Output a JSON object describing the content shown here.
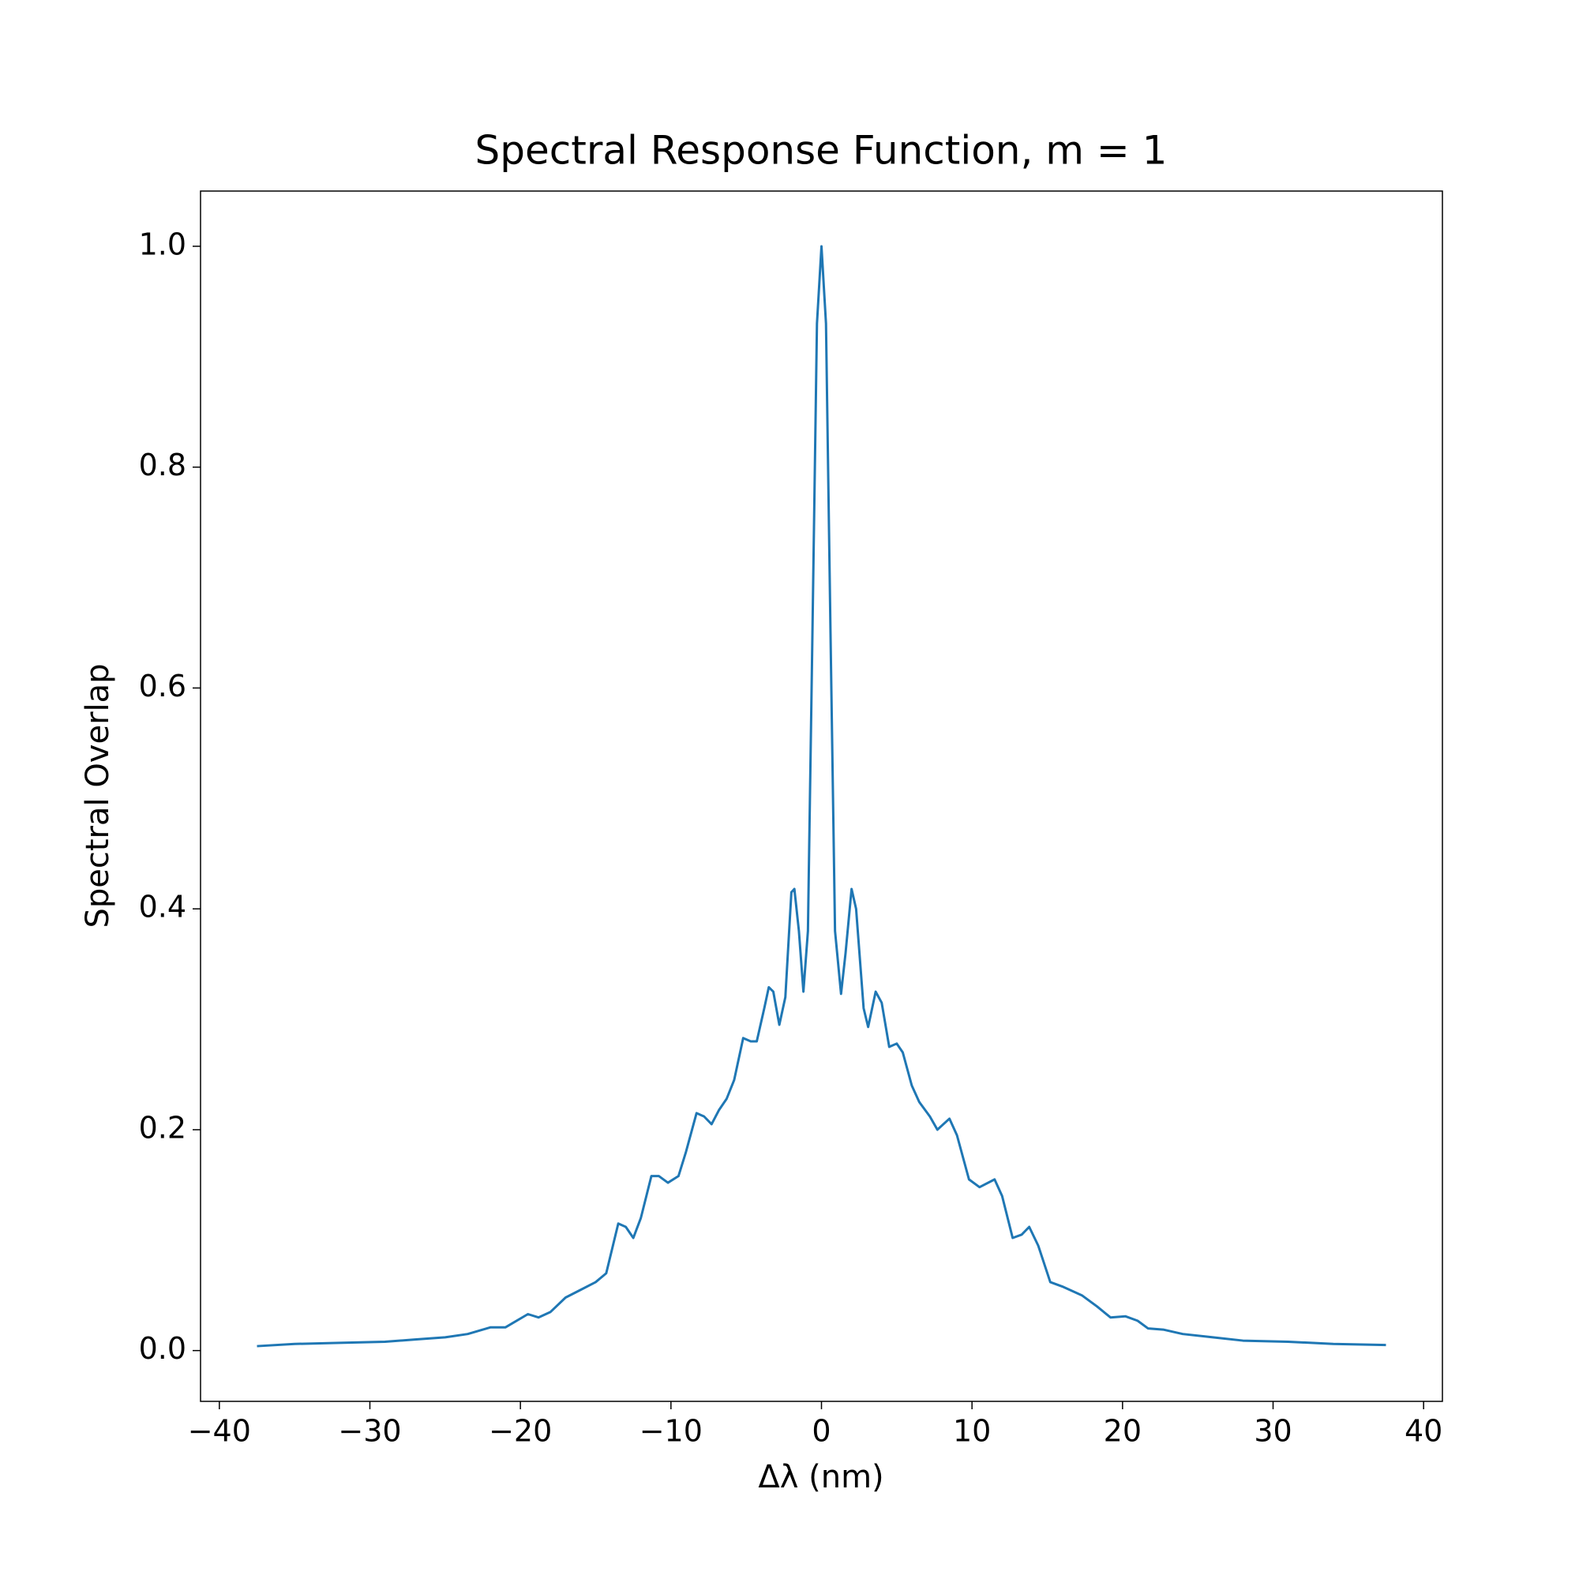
{
  "chart_data": {
    "type": "line",
    "title": "Spectral Response Function, m = 1",
    "xlabel": "Δλ (nm)",
    "ylabel": "Spectral Overlap",
    "xlim": [
      -41.25,
      41.25
    ],
    "ylim": [
      -0.046,
      1.05
    ],
    "xticks": [
      {
        "value": -40,
        "label": "−40"
      },
      {
        "value": -30,
        "label": "−30"
      },
      {
        "value": -20,
        "label": "−20"
      },
      {
        "value": -10,
        "label": "−10"
      },
      0,
      10,
      20,
      30,
      40
    ],
    "yticks": [
      {
        "value": 0,
        "label": "0.0"
      },
      0.2,
      0.4,
      0.6,
      0.8,
      {
        "value": 1,
        "label": "1.0"
      }
    ],
    "grid": false,
    "series": [
      {
        "color": "#1f77b4",
        "x": [
          -37.5,
          -35,
          -32,
          -29,
          -27,
          -25,
          -23.5,
          -22,
          -21,
          -20.5,
          -19.5,
          -18.8,
          -18,
          -17,
          -16,
          -15,
          -14.3,
          -13.5,
          -13,
          -12.5,
          -12,
          -11.3,
          -10.8,
          -10.2,
          -9.5,
          -9,
          -8.3,
          -7.8,
          -7.3,
          -6.8,
          -6.3,
          -5.8,
          -5.2,
          -4.7,
          -4.3,
          -3.8,
          -3.5,
          -3.2,
          -2.8,
          -2.4,
          -2.0,
          -1.8,
          -1.5,
          -1.2,
          -0.9,
          -0.6,
          -0.3,
          0,
          0.3,
          0.6,
          0.9,
          1.3,
          1.6,
          2.0,
          2.3,
          2.8,
          3.1,
          3.6,
          4.0,
          4.5,
          5.0,
          5.4,
          6.0,
          6.5,
          7.2,
          7.7,
          8.5,
          9.0,
          9.8,
          10.5,
          11.5,
          12.0,
          12.7,
          13.3,
          13.8,
          14.4,
          15.2,
          16,
          17.3,
          18.3,
          19.2,
          20.2,
          21,
          21.7,
          22.7,
          24,
          26,
          28,
          31,
          34,
          37.5
        ],
        "values": [
          0.004,
          0.006,
          0.007,
          0.008,
          0.01,
          0.012,
          0.015,
          0.021,
          0.021,
          0.025,
          0.033,
          0.03,
          0.035,
          0.048,
          0.055,
          0.062,
          0.07,
          0.115,
          0.112,
          0.102,
          0.12,
          0.158,
          0.158,
          0.152,
          0.158,
          0.18,
          0.215,
          0.212,
          0.205,
          0.218,
          0.228,
          0.245,
          0.283,
          0.28,
          0.28,
          0.31,
          0.329,
          0.325,
          0.295,
          0.32,
          0.415,
          0.418,
          0.38,
          0.325,
          0.38,
          0.65,
          0.93,
          1.0,
          0.93,
          0.65,
          0.38,
          0.323,
          0.36,
          0.418,
          0.4,
          0.31,
          0.293,
          0.325,
          0.315,
          0.275,
          0.278,
          0.27,
          0.24,
          0.225,
          0.212,
          0.2,
          0.21,
          0.195,
          0.155,
          0.148,
          0.155,
          0.14,
          0.102,
          0.105,
          0.112,
          0.095,
          0.062,
          0.058,
          0.05,
          0.04,
          0.03,
          0.031,
          0.027,
          0.02,
          0.019,
          0.015,
          0.012,
          0.009,
          0.008,
          0.006,
          0.005
        ]
      }
    ]
  }
}
